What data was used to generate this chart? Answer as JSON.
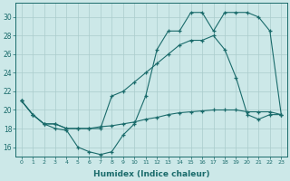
{
  "xlabel": "Humidex (Indice chaleur)",
  "bg_color": "#cce8e8",
  "grid_color": "#aacccc",
  "line_color": "#1a6b6b",
  "xlim": [
    -0.5,
    23.5
  ],
  "ylim": [
    15.0,
    31.5
  ],
  "yticks": [
    16,
    18,
    20,
    22,
    24,
    26,
    28,
    30
  ],
  "xticks": [
    0,
    1,
    2,
    3,
    4,
    5,
    6,
    7,
    8,
    9,
    10,
    11,
    12,
    13,
    14,
    15,
    16,
    17,
    18,
    19,
    20,
    21,
    22,
    23
  ],
  "curve1_x": [
    0,
    1,
    2,
    3,
    4,
    5,
    6,
    7,
    8,
    9,
    10,
    11,
    12,
    13,
    14,
    15,
    16,
    17,
    18,
    19,
    20,
    21,
    22,
    23
  ],
  "curve1_y": [
    21.0,
    19.5,
    18.5,
    18.0,
    17.8,
    16.0,
    15.5,
    15.2,
    15.5,
    17.3,
    18.5,
    21.5,
    26.5,
    28.5,
    28.5,
    30.5,
    30.5,
    28.5,
    30.5,
    30.5,
    30.5,
    30.0,
    28.5,
    19.5
  ],
  "curve2_x": [
    0,
    1,
    2,
    3,
    4,
    5,
    6,
    7,
    8,
    9,
    10,
    11,
    12,
    13,
    14,
    15,
    16,
    17,
    18,
    19,
    20,
    21,
    22,
    23
  ],
  "curve2_y": [
    21.0,
    19.5,
    18.5,
    18.5,
    18.0,
    18.0,
    18.0,
    18.0,
    21.5,
    22.0,
    23.0,
    24.0,
    25.0,
    26.0,
    27.0,
    27.5,
    27.5,
    28.0,
    26.5,
    23.5,
    19.5,
    19.0,
    19.5,
    19.5
  ],
  "curve3_x": [
    0,
    1,
    2,
    3,
    4,
    5,
    6,
    7,
    8,
    9,
    10,
    11,
    12,
    13,
    14,
    15,
    16,
    17,
    18,
    19,
    20,
    21,
    22,
    23
  ],
  "curve3_y": [
    21.0,
    19.5,
    18.5,
    18.5,
    18.0,
    18.0,
    18.0,
    18.2,
    18.3,
    18.5,
    18.7,
    19.0,
    19.2,
    19.5,
    19.7,
    19.8,
    19.9,
    20.0,
    20.0,
    20.0,
    19.8,
    19.8,
    19.8,
    19.5
  ]
}
